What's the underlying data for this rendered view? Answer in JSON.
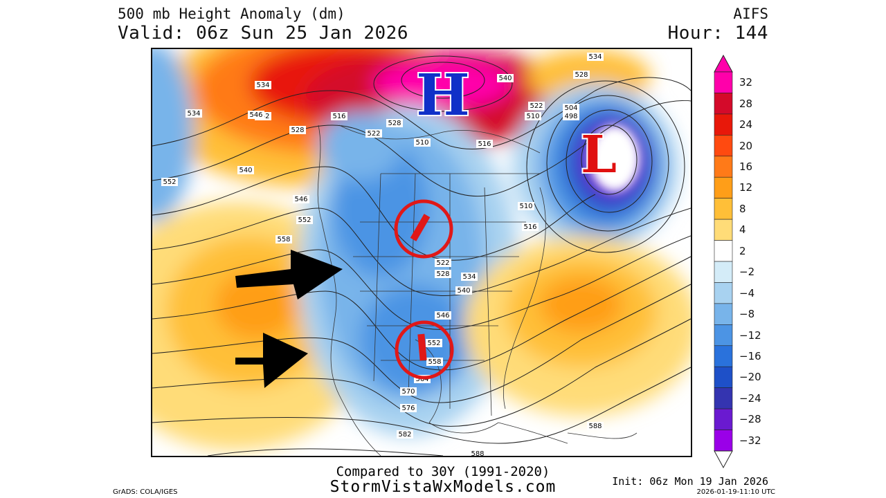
{
  "header": {
    "title": "500 mb Height Anomaly (dm)",
    "valid": "Valid: 06z Sun 25 Jan 2026",
    "model": "AIFS",
    "hour": "Hour: 144"
  },
  "map": {
    "annotations": {
      "high_letter": "H",
      "low_letter": "L",
      "high_color": "#1030c8",
      "low_color": "#e01010",
      "circle_color": "#e01818",
      "arrow_color": "#000000"
    },
    "contour_labels": [
      "534",
      "552",
      "546",
      "528",
      "516",
      "522",
      "528",
      "510",
      "516",
      "540",
      "534",
      "528",
      "522",
      "510",
      "504",
      "498",
      "534",
      "540",
      "552",
      "558",
      "546",
      "552",
      "510",
      "516",
      "522",
      "528",
      "534",
      "540",
      "546",
      "552",
      "558",
      "564",
      "570",
      "576",
      "582",
      "588",
      "588"
    ]
  },
  "legend": {
    "ticks": [
      "32",
      "28",
      "24",
      "20",
      "16",
      "12",
      "8",
      "4",
      "2",
      "-2",
      "-4",
      "-8",
      "-12",
      "-16",
      "-20",
      "-24",
      "-28",
      "-32"
    ],
    "colors": [
      "#ff00aa",
      "#d40a2a",
      "#e8180a",
      "#ff4a10",
      "#ff7a18",
      "#ff9e18",
      "#ffbf38",
      "#ffdc78",
      "#ffffff",
      "#d4ecf8",
      "#a8d2f0",
      "#78b4ea",
      "#4c94e4",
      "#2a72dc",
      "#1e50c8",
      "#3434b0",
      "#6a1ad0",
      "#9a00e8"
    ]
  },
  "footer": {
    "compared": "Compared to 30Y (1991-2020)",
    "site": "StormVistaWxModels.com",
    "grads": "GrADS: COLA/IGES",
    "init": "Init: 06z Mon 19 Jan 2026",
    "stamp": "2026-01-19-11:10 UTC"
  }
}
